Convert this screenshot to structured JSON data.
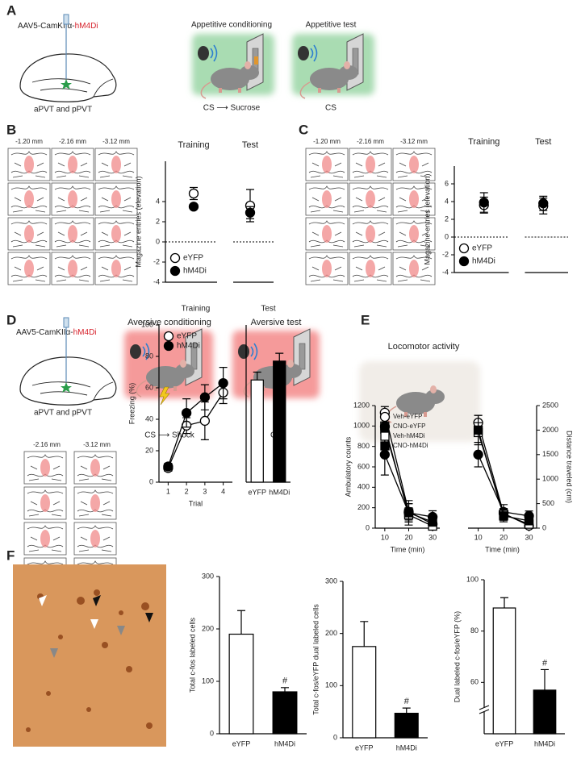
{
  "panel_labels": [
    "A",
    "B",
    "C",
    "D",
    "E",
    "F"
  ],
  "panel_a": {
    "virus": "AAV5-CamKIIα-",
    "virus_construct": "hM4Di",
    "target": "aPVT and pPVT",
    "conditioning": "Appetitive conditioning",
    "test": "Appetitive test",
    "conditioning_cs": "CS ⟶ Sucrose",
    "test_cs": "CS"
  },
  "section_levels_b": [
    "-1.20 mm",
    "-2.16 mm",
    "-3.12 mm"
  ],
  "section_levels_c": [
    "-1.20 mm",
    "-2.16 mm",
    "-3.12 mm"
  ],
  "panel_d": {
    "virus": "AAV5-CamKIIα-",
    "virus_construct": "hM4Di",
    "target": "aPVT and pPVT",
    "conditioning": "Aversive conditioning",
    "test": "Aversive test",
    "conditioning_cs": "CS ⟶ Shock",
    "test_cs": "CS",
    "section_levels": [
      "-2.16 mm",
      "-3.12 mm"
    ]
  },
  "panel_e": {
    "title": "Locomotor activity"
  },
  "chart_data": [
    {
      "type": "dot",
      "ylabel": "Magazine entries (elevation)",
      "categories": [
        "Training",
        "Test"
      ],
      "ylim": [
        -4,
        8
      ],
      "yticks": [
        -4,
        -2,
        0,
        2,
        4
      ],
      "reference_y": 0,
      "legend": "lower left",
      "series": [
        {
          "name": "eYFP",
          "color": "#000000",
          "fill": "#ffffff",
          "marker": "circle",
          "values": [
            4.8,
            3.6
          ],
          "errors": [
            0.6,
            1.6
          ]
        },
        {
          "name": "hM4Di",
          "color": "#000000",
          "fill": "#000000",
          "marker": "circle",
          "values": [
            3.5,
            2.9
          ],
          "errors": [
            0.2,
            0.6
          ]
        }
      ]
    },
    {
      "type": "dot",
      "ylabel": "Magazine entries (elevation)",
      "categories": [
        "Training",
        "Test"
      ],
      "ylim": [
        -4,
        8
      ],
      "yticks": [
        -4,
        -2,
        0,
        2,
        4,
        6
      ],
      "reference_y": 0,
      "legend": "lower left",
      "series": [
        {
          "name": "eYFP",
          "color": "#000000",
          "fill": "#ffffff",
          "marker": "circle",
          "values": [
            3.6,
            3.5
          ],
          "errors": [
            0.9,
            0.9
          ]
        },
        {
          "name": "hM4Di",
          "color": "#000000",
          "fill": "#000000",
          "marker": "circle",
          "values": [
            3.9,
            3.8
          ],
          "errors": [
            1.1,
            0.8
          ]
        }
      ]
    },
    {
      "type": "line",
      "title": "Training",
      "ylabel": "Freezing (%)",
      "xlabel": "Trial",
      "x": [
        1,
        2,
        3,
        4
      ],
      "xlim": [
        0.5,
        4.5
      ],
      "xticks": [
        1,
        2,
        3,
        4
      ],
      "ylim": [
        0,
        100
      ],
      "yticks": [
        0,
        20,
        40,
        60,
        80,
        100
      ],
      "legend": "upper left",
      "series": [
        {
          "name": "eYFP",
          "color": "#000000",
          "fill": "#ffffff",
          "marker": "circle",
          "values": [
            9,
            36,
            39,
            57
          ],
          "errors": [
            2,
            5,
            12,
            7
          ]
        },
        {
          "name": "hM4Di",
          "color": "#000000",
          "fill": "#000000",
          "marker": "circle",
          "values": [
            10,
            44,
            54,
            63
          ],
          "errors": [
            2,
            9,
            8,
            10
          ]
        }
      ]
    },
    {
      "type": "bar",
      "title": "Test",
      "categories": [
        "eYFP",
        "hM4Di"
      ],
      "ylim": [
        0,
        100
      ],
      "values": [
        65,
        77
      ],
      "errors": [
        5,
        5
      ],
      "colors": [
        "#ffffff",
        "#000000"
      ]
    },
    {
      "type": "line",
      "ylabel": "Ambulatory counts",
      "xlabel": "Time (min)",
      "x": [
        10,
        20,
        30
      ],
      "xlim": [
        6,
        33
      ],
      "xticks": [
        10,
        20,
        30
      ],
      "ylim": [
        0,
        1200
      ],
      "yticks": [
        0,
        200,
        400,
        600,
        800,
        1000,
        1200
      ],
      "legend": "upper left",
      "series": [
        {
          "name": "Veh-eYFP",
          "color": "#000000",
          "fill": "#ffffff",
          "marker": "circle",
          "values": [
            1130,
            160,
            40
          ],
          "errors": [
            60,
            80,
            30
          ]
        },
        {
          "name": "CNO-eYFP",
          "color": "#000000",
          "fill": "#000000",
          "marker": "circle",
          "values": [
            720,
            150,
            110
          ],
          "errors": [
            200,
            120,
            60
          ]
        },
        {
          "name": "Veh-hM4Di",
          "color": "#000000",
          "fill": "#ffffff",
          "marker": "square",
          "values": [
            1000,
            130,
            20
          ],
          "errors": [
            120,
            70,
            20
          ]
        },
        {
          "name": "CNO-hM4Di",
          "color": "#000000",
          "fill": "#000000",
          "marker": "square",
          "values": [
            970,
            150,
            60
          ],
          "errors": [
            150,
            90,
            40
          ]
        }
      ]
    },
    {
      "type": "line",
      "ylabel": "Distance traveled (cm)",
      "xlabel": "Time (min)",
      "x": [
        10,
        20,
        30
      ],
      "xlim": [
        6,
        33
      ],
      "xticks": [
        10,
        20,
        30
      ],
      "ylim": [
        0,
        2500
      ],
      "yticks": [
        0,
        500,
        1000,
        1500,
        2000,
        2500
      ],
      "yaxis_side": "right",
      "series": [
        {
          "name": "Veh-eYFP",
          "color": "#000000",
          "fill": "#ffffff",
          "marker": "circle",
          "values": [
            2150,
            300,
            50
          ],
          "errors": [
            150,
            100,
            40
          ]
        },
        {
          "name": "CNO-eYFP",
          "color": "#000000",
          "fill": "#000000",
          "marker": "circle",
          "values": [
            1500,
            330,
            250
          ],
          "errors": [
            250,
            150,
            100
          ]
        },
        {
          "name": "Veh-hM4Di",
          "color": "#000000",
          "fill": "#ffffff",
          "marker": "square",
          "values": [
            1950,
            280,
            80
          ],
          "errors": [
            200,
            120,
            50
          ]
        },
        {
          "name": "CNO-hM4Di",
          "color": "#000000",
          "fill": "#000000",
          "marker": "square",
          "values": [
            2000,
            250,
            150
          ],
          "errors": [
            300,
            120,
            80
          ]
        }
      ]
    },
    {
      "type": "bar",
      "ylabel": "Total c-fos labeled cells",
      "categories": [
        "eYFP",
        "hM4Di"
      ],
      "ylim": [
        0,
        300
      ],
      "yticks": [
        0,
        100,
        200,
        300
      ],
      "values": [
        190,
        80
      ],
      "errors": [
        45,
        8
      ],
      "colors": [
        "#ffffff",
        "#000000"
      ],
      "value_annotations": [
        null,
        "#"
      ]
    },
    {
      "type": "bar",
      "ylabel": "Total c-fos/eYFP dual  labeled cells",
      "categories": [
        "eYFP",
        "hM4Di"
      ],
      "ylim": [
        0,
        300
      ],
      "yticks": [
        0,
        100,
        200,
        300
      ],
      "values": [
        175,
        47
      ],
      "errors": [
        48,
        10
      ],
      "colors": [
        "#ffffff",
        "#000000"
      ],
      "value_annotations": [
        null,
        "#"
      ]
    },
    {
      "type": "bar",
      "ylabel": "Dual labeled c-fos/eYFP (%)",
      "categories": [
        "eYFP",
        "hM4Di"
      ],
      "ylim": [
        40,
        100
      ],
      "yticks": [
        60,
        80,
        100
      ],
      "axis_break": true,
      "values": [
        89,
        57
      ],
      "errors": [
        4,
        8
      ],
      "colors": [
        "#ffffff",
        "#000000"
      ],
      "value_annotations": [
        null,
        "#"
      ]
    }
  ]
}
